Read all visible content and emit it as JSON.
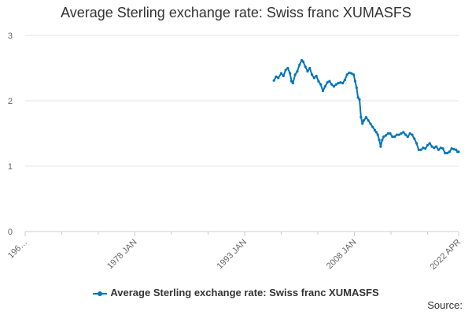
{
  "colors": {
    "series": "#0075b8",
    "grid": "#e6e6e6",
    "axis": "#cccccc",
    "text": "#666666"
  },
  "credits": {
    "source_label": "Source:"
  },
  "chart_data": {
    "type": "line",
    "title": "Average Sterling exchange rate: Swiss franc XUMASFS",
    "xlabel": "",
    "ylabel": "",
    "ylim": [
      0,
      3
    ],
    "yticks": [
      0,
      1,
      2,
      3
    ],
    "xlim": [
      1963.0,
      2022.25
    ],
    "xticks": [
      {
        "label": "196…",
        "value": 1963.0
      },
      {
        "label": "1978 JAN",
        "value": 1978.0
      },
      {
        "label": "1993 JAN",
        "value": 1993.0
      },
      {
        "label": "2008 JAN",
        "value": 2008.0
      },
      {
        "label": "2022 APR",
        "value": 2022.25
      }
    ],
    "grid": true,
    "legend_position": "bottom-center",
    "series": [
      {
        "name": "Average Sterling exchange rate: Swiss franc XUMASFS",
        "color": "#0075b8",
        "points": [
          [
            1997.0,
            2.31
          ],
          [
            1997.3,
            2.37
          ],
          [
            1997.6,
            2.35
          ],
          [
            1998.0,
            2.42
          ],
          [
            1998.3,
            2.38
          ],
          [
            1998.6,
            2.47
          ],
          [
            1998.9,
            2.5
          ],
          [
            1999.2,
            2.42
          ],
          [
            1999.4,
            2.3
          ],
          [
            1999.6,
            2.27
          ],
          [
            1999.9,
            2.4
          ],
          [
            2000.2,
            2.45
          ],
          [
            2000.5,
            2.55
          ],
          [
            2000.8,
            2.62
          ],
          [
            2001.0,
            2.6
          ],
          [
            2001.3,
            2.52
          ],
          [
            2001.6,
            2.45
          ],
          [
            2001.9,
            2.5
          ],
          [
            2002.2,
            2.4
          ],
          [
            2002.5,
            2.35
          ],
          [
            2002.8,
            2.38
          ],
          [
            2003.1,
            2.3
          ],
          [
            2003.4,
            2.25
          ],
          [
            2003.7,
            2.15
          ],
          [
            2004.0,
            2.22
          ],
          [
            2004.3,
            2.28
          ],
          [
            2004.6,
            2.3
          ],
          [
            2004.9,
            2.25
          ],
          [
            2005.2,
            2.22
          ],
          [
            2005.5,
            2.25
          ],
          [
            2005.8,
            2.27
          ],
          [
            2006.1,
            2.28
          ],
          [
            2006.4,
            2.27
          ],
          [
            2006.7,
            2.32
          ],
          [
            2007.0,
            2.4
          ],
          [
            2007.3,
            2.43
          ],
          [
            2007.6,
            2.42
          ],
          [
            2007.9,
            2.4
          ],
          [
            2008.1,
            2.3
          ],
          [
            2008.3,
            2.2
          ],
          [
            2008.5,
            2.05
          ],
          [
            2008.7,
            2.02
          ],
          [
            2008.9,
            1.75
          ],
          [
            2009.1,
            1.65
          ],
          [
            2009.3,
            1.7
          ],
          [
            2009.6,
            1.75
          ],
          [
            2009.9,
            1.7
          ],
          [
            2010.2,
            1.65
          ],
          [
            2010.5,
            1.6
          ],
          [
            2010.8,
            1.55
          ],
          [
            2011.0,
            1.52
          ],
          [
            2011.2,
            1.48
          ],
          [
            2011.4,
            1.4
          ],
          [
            2011.6,
            1.3
          ],
          [
            2011.8,
            1.4
          ],
          [
            2012.0,
            1.45
          ],
          [
            2012.3,
            1.47
          ],
          [
            2012.6,
            1.5
          ],
          [
            2012.9,
            1.5
          ],
          [
            2013.2,
            1.45
          ],
          [
            2013.5,
            1.45
          ],
          [
            2013.8,
            1.48
          ],
          [
            2014.1,
            1.48
          ],
          [
            2014.4,
            1.5
          ],
          [
            2014.7,
            1.52
          ],
          [
            2015.0,
            1.48
          ],
          [
            2015.3,
            1.45
          ],
          [
            2015.6,
            1.5
          ],
          [
            2015.9,
            1.48
          ],
          [
            2016.2,
            1.42
          ],
          [
            2016.5,
            1.35
          ],
          [
            2016.8,
            1.25
          ],
          [
            2017.1,
            1.25
          ],
          [
            2017.4,
            1.28
          ],
          [
            2017.7,
            1.27
          ],
          [
            2018.0,
            1.32
          ],
          [
            2018.3,
            1.35
          ],
          [
            2018.6,
            1.3
          ],
          [
            2018.9,
            1.28
          ],
          [
            2019.2,
            1.3
          ],
          [
            2019.5,
            1.25
          ],
          [
            2019.8,
            1.28
          ],
          [
            2020.1,
            1.27
          ],
          [
            2020.4,
            1.2
          ],
          [
            2020.7,
            1.2
          ],
          [
            2021.0,
            1.22
          ],
          [
            2021.3,
            1.27
          ],
          [
            2021.6,
            1.26
          ],
          [
            2021.9,
            1.25
          ],
          [
            2022.1,
            1.22
          ],
          [
            2022.25,
            1.22
          ]
        ]
      }
    ]
  }
}
